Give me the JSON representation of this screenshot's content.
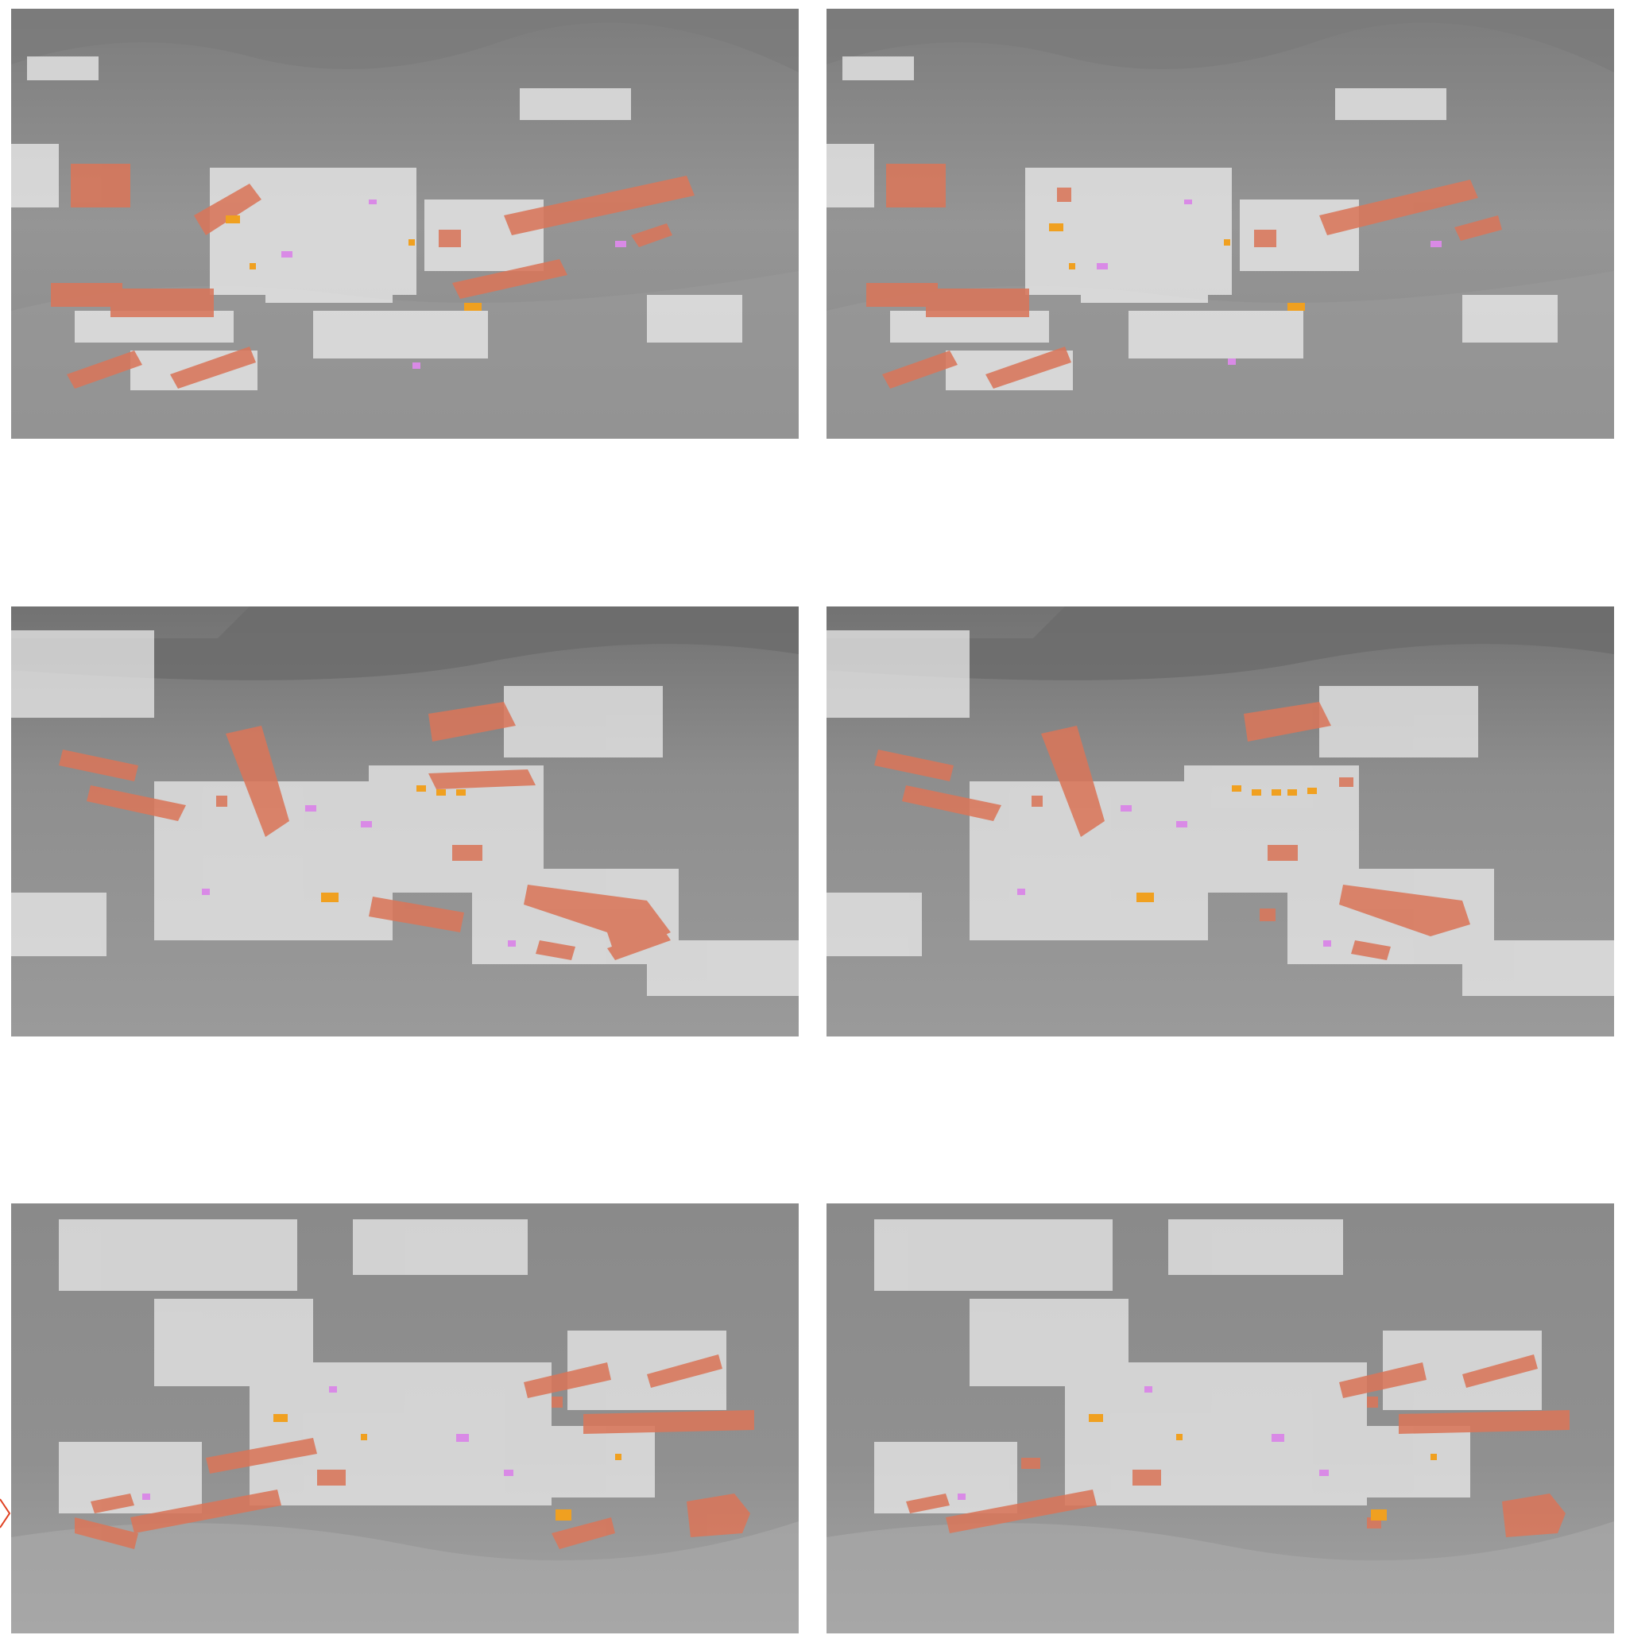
{
  "figure": {
    "panels": [
      {
        "row": 1,
        "col": 1,
        "view": "view-a",
        "variant": "left"
      },
      {
        "row": 1,
        "col": 2,
        "view": "view-a",
        "variant": "right"
      },
      {
        "row": 2,
        "col": 1,
        "view": "view-b",
        "variant": "left"
      },
      {
        "row": 2,
        "col": 2,
        "view": "view-b",
        "variant": "right"
      },
      {
        "row": 3,
        "col": 1,
        "view": "view-c",
        "variant": "left"
      },
      {
        "row": 3,
        "col": 2,
        "view": "view-c",
        "variant": "right"
      }
    ],
    "colors": {
      "terrain": "#8c8c8c",
      "terrain_dark": "#6f6f6f",
      "terrain_light": "#b4b4b4",
      "buildings": "#eeeeee",
      "highlight_zone": "#d9765a",
      "highlight_zone_dark": "#c4573b",
      "amenity_orange": "#f0a020",
      "amenity_violet": "#d98ae6",
      "amenity_blue": "#9fb8d6",
      "cursor": "#e04020"
    }
  }
}
